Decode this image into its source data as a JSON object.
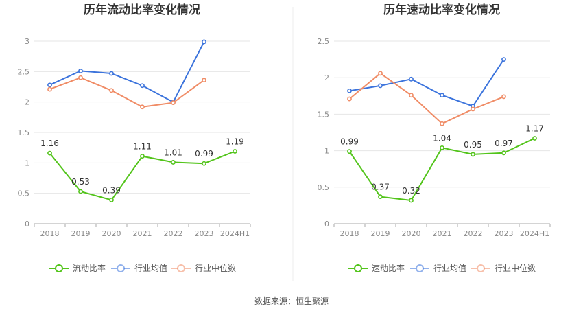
{
  "source": "数据来源：恒生聚源",
  "chart_data": [
    {
      "type": "line",
      "title": "历年流动比率变化情况",
      "categories": [
        "2018",
        "2019",
        "2020",
        "2021",
        "2022",
        "2023",
        "2024H1"
      ],
      "ylim": [
        0,
        3
      ],
      "yticks": [
        "0",
        "0.5",
        "1",
        "1.5",
        "2",
        "2.5",
        "3"
      ],
      "grid": true,
      "legend_position": "bottom",
      "series": [
        {
          "name": "流动比率",
          "color": "#52c41a",
          "values": [
            1.16,
            0.53,
            0.39,
            1.11,
            1.01,
            0.99,
            1.19
          ],
          "labels": [
            "1.16",
            "0.53",
            "0.39",
            "1.11",
            "1.01",
            "0.99",
            "1.19"
          ]
        },
        {
          "name": "行业均值",
          "color": "#3b73dc",
          "values": [
            2.28,
            2.51,
            2.47,
            2.27,
            2.0,
            2.99,
            null
          ]
        },
        {
          "name": "行业中位数",
          "color": "#f08c66",
          "values": [
            2.21,
            2.4,
            2.19,
            1.92,
            1.99,
            2.36,
            null
          ]
        }
      ]
    },
    {
      "type": "line",
      "title": "历年速动比率变化情况",
      "categories": [
        "2018",
        "2019",
        "2020",
        "2021",
        "2022",
        "2023",
        "2024H1"
      ],
      "ylim": [
        0,
        2.5
      ],
      "yticks": [
        "0",
        "0.5",
        "1",
        "1.5",
        "2",
        "2.5"
      ],
      "grid": true,
      "legend_position": "bottom",
      "series": [
        {
          "name": "速动比率",
          "color": "#52c41a",
          "values": [
            0.99,
            0.37,
            0.32,
            1.04,
            0.95,
            0.97,
            1.17
          ],
          "labels": [
            "0.99",
            "0.37",
            "0.32",
            "1.04",
            "0.95",
            "0.97",
            "1.17"
          ]
        },
        {
          "name": "行业均值",
          "color": "#3b73dc",
          "values": [
            1.82,
            1.89,
            1.98,
            1.76,
            1.61,
            2.25,
            null
          ]
        },
        {
          "name": "行业中位数",
          "color": "#f08c66",
          "values": [
            1.71,
            2.06,
            1.76,
            1.37,
            1.57,
            1.74,
            null
          ]
        }
      ]
    }
  ]
}
